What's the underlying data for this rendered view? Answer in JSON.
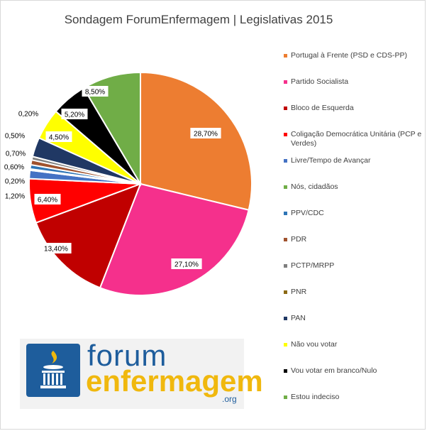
{
  "chart_data": {
    "type": "pie",
    "title": "Sondagem ForumEnfermagem | Legislativas 2015",
    "slices": [
      {
        "label": "Portugal à Frente (PSD e CDS-PP)",
        "value": 28.7,
        "value_label": "28,70%",
        "color": "#ed7d31"
      },
      {
        "label": "Partido Socialista",
        "value": 27.1,
        "value_label": "27,10%",
        "color": "#f5308c"
      },
      {
        "label": "Bloco de Esquerda",
        "value": 13.4,
        "value_label": "13,40%",
        "color": "#c00000"
      },
      {
        "label": "Coligação Democrática Unitária (PCP e Verdes)",
        "value": 6.4,
        "value_label": "6,40%",
        "color": "#ff0000"
      },
      {
        "label": "Livre/Tempo de Avançar",
        "value": 1.2,
        "value_label": "1,20%",
        "color": "#4472c4"
      },
      {
        "label": "Nós, cidadãos",
        "value": 0.2,
        "value_label": "0,20%",
        "color": "#70ad47"
      },
      {
        "label": "PPV/CDC",
        "value": 0.6,
        "value_label": "0,60%",
        "color": "#2e75b6"
      },
      {
        "label": "PDR",
        "value": 0.7,
        "value_label": "0,70%",
        "color": "#a0522d"
      },
      {
        "label": "PCTP/MRPP",
        "value": 0.5,
        "value_label": "0,50%",
        "color": "#7f7f7f"
      },
      {
        "label": "PNR",
        "value": 0.0,
        "value_label": "",
        "color": "#8b6914"
      },
      {
        "label": "PAN",
        "value": 2.8,
        "value_label": "",
        "color": "#203864"
      },
      {
        "label": "Não vou votar",
        "value": 4.5,
        "value_label": "4,50%",
        "color": "#ffff00"
      },
      {
        "label": "Vou votar em branco/Nulo",
        "value": 5.2,
        "value_label": "5,20%",
        "color": "#000000"
      },
      {
        "label": "Estou indeciso",
        "value": 8.5,
        "value_label": "8,50%",
        "color": "#70ad47"
      }
    ],
    "extra_labels": [
      {
        "text": "0,20%"
      }
    ],
    "legend_position": "right"
  },
  "logo": {
    "word1": "forum",
    "word2": "enfermagem",
    "tld": ".org"
  }
}
